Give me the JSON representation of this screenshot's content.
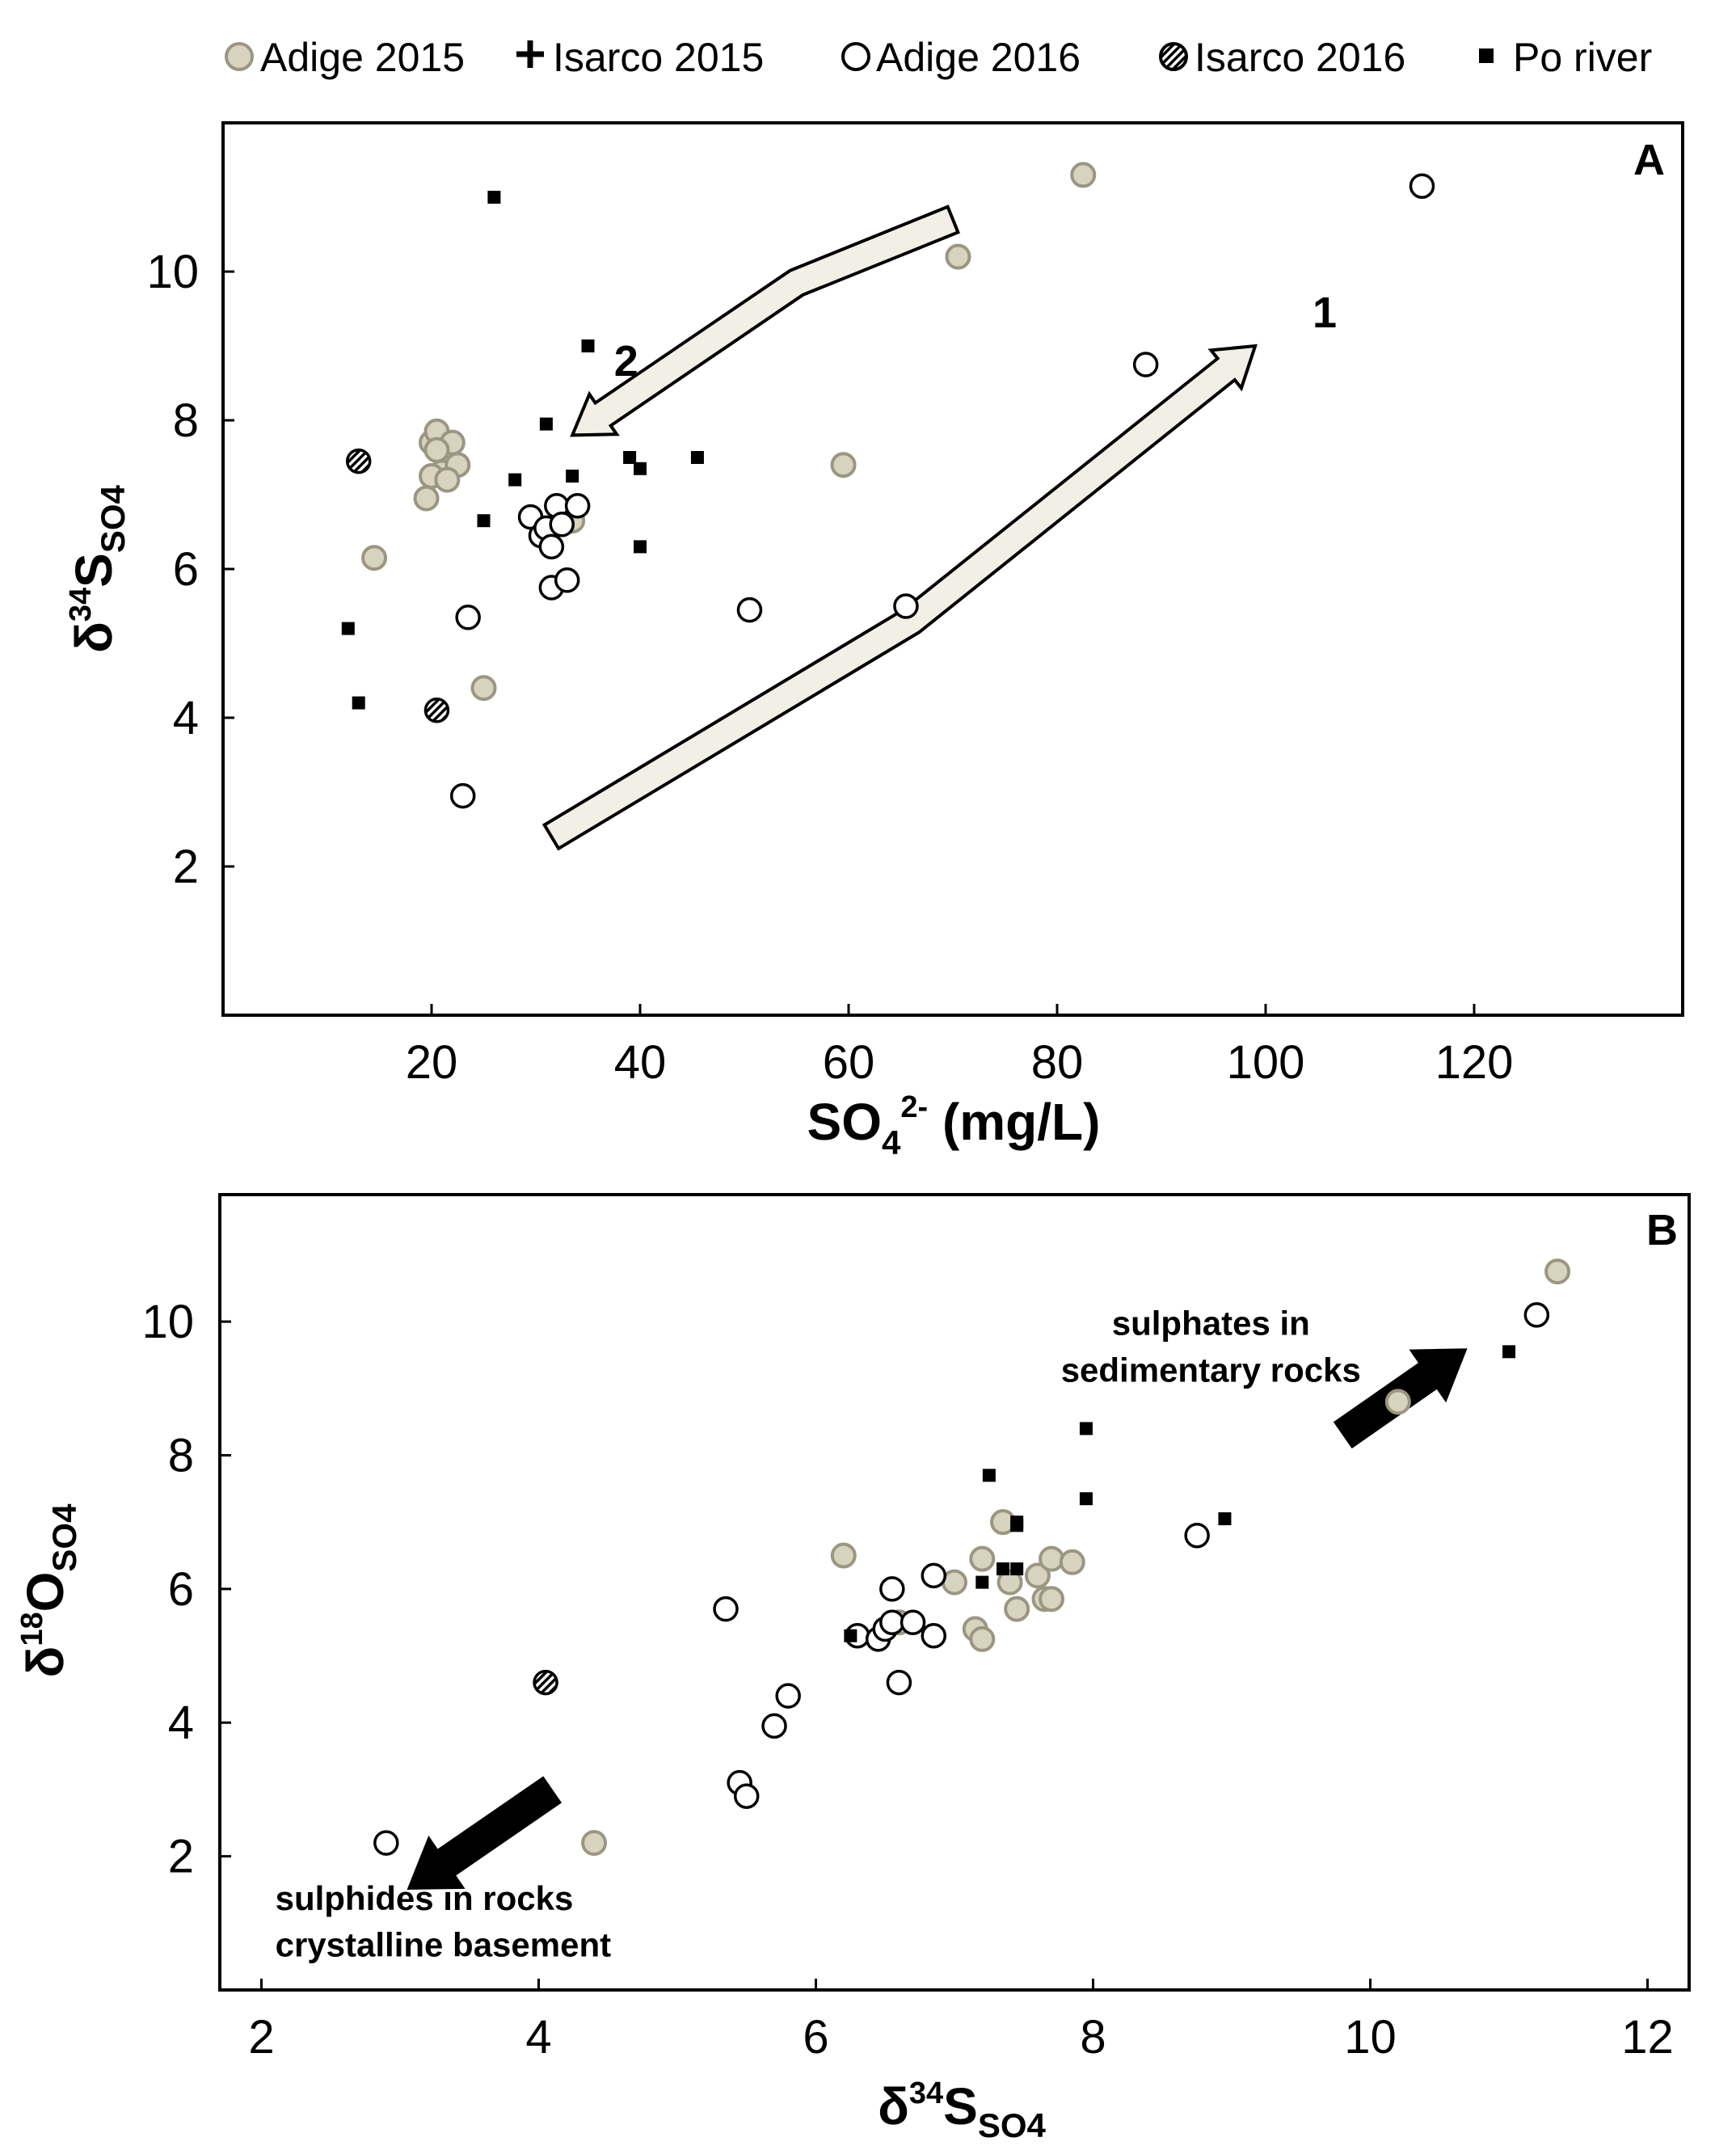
{
  "legend": [
    {
      "label": "Adige 2015",
      "marker": "filled-circle",
      "color": "#d8d3bf"
    },
    {
      "label": "Isarco 2015",
      "marker": "plus",
      "color": "#000000"
    },
    {
      "label": "Adige 2016",
      "marker": "open-circle",
      "color": "#ffffff"
    },
    {
      "label": "Isarco 2016",
      "marker": "hatched-circle",
      "color": "#000000"
    },
    {
      "label": "Po river",
      "marker": "square",
      "color": "#000000"
    }
  ],
  "colors": {
    "adige2015_fill": "#d8d3bf",
    "adige2015_edge": "#9b9682",
    "arrow_fill": "#f2efe6",
    "ink": "#000000"
  },
  "chart_data": [
    {
      "type": "scatter",
      "panel_label": "A",
      "xlabel": {
        "main": "SO",
        "sub": "4",
        "sup": "2-",
        "rest": " (mg/L)"
      },
      "ylabel": {
        "main": "δ",
        "sup": "34",
        "mid": "S",
        "sub": "SO4"
      },
      "xlim": [
        0,
        140
      ],
      "ylim": [
        0,
        12
      ],
      "xticks": [
        20,
        40,
        60,
        80,
        100,
        120
      ],
      "yticks": [
        2,
        4,
        6,
        8,
        10
      ],
      "series": [
        {
          "name": "Adige 2015",
          "points": [
            [
              14.5,
              6.15
            ],
            [
              19.5,
              6.95
            ],
            [
              20,
              7.7
            ],
            [
              20.5,
              7.85
            ],
            [
              21,
              7.3
            ],
            [
              22,
              7.7
            ],
            [
              22.5,
              7.4
            ],
            [
              20,
              7.25
            ],
            [
              20.5,
              7.6
            ],
            [
              21.5,
              7.2
            ],
            [
              33.5,
              6.65
            ],
            [
              25,
              4.4
            ],
            [
              59.5,
              7.4
            ],
            [
              70.5,
              10.2
            ],
            [
              82.5,
              11.3
            ]
          ]
        },
        {
          "name": "Isarco 2015",
          "points": []
        },
        {
          "name": "Adige 2016",
          "points": [
            [
              23.5,
              5.35
            ],
            [
              23,
              2.95
            ],
            [
              29.5,
              6.7
            ],
            [
              30.5,
              6.45
            ],
            [
              31,
              6.55
            ],
            [
              31.5,
              6.3
            ],
            [
              32,
              6.85
            ],
            [
              32.5,
              6.6
            ],
            [
              34,
              6.85
            ],
            [
              31.5,
              5.75
            ],
            [
              33,
              5.85
            ],
            [
              50.5,
              5.45
            ],
            [
              65.5,
              5.5
            ],
            [
              88.5,
              8.75
            ],
            [
              115,
              11.15
            ]
          ]
        },
        {
          "name": "Isarco 2016",
          "points": [
            [
              13,
              7.45
            ],
            [
              20.5,
              4.1
            ]
          ]
        },
        {
          "name": "Po river",
          "points": [
            [
              12,
              5.2
            ],
            [
              13,
              4.2
            ],
            [
              25,
              6.65
            ],
            [
              26,
              11
            ],
            [
              28,
              7.2
            ],
            [
              31,
              7.95
            ],
            [
              33.5,
              7.25
            ],
            [
              35,
              9
            ],
            [
              39,
              7.5
            ],
            [
              40,
              7.35
            ],
            [
              40,
              6.3
            ],
            [
              45.5,
              7.5
            ]
          ]
        }
      ],
      "annotations": [
        {
          "text": "1",
          "x": 104.5,
          "y": 9.25
        },
        {
          "text": "2",
          "x": 37.5,
          "y": 8.6
        }
      ],
      "arrows": [
        {
          "label": "1",
          "path": [
            [
              31.5,
              2.4
            ],
            [
              66,
              5.3
            ],
            [
              99,
              9.0
            ]
          ]
        },
        {
          "label": "2",
          "path": [
            [
              70,
              10.7
            ],
            [
              55,
              9.85
            ],
            [
              33.5,
              7.8
            ]
          ]
        }
      ]
    },
    {
      "type": "scatter",
      "panel_label": "B",
      "xlabel": {
        "main": "δ",
        "sup": "34",
        "mid": "S",
        "sub": "SO4"
      },
      "ylabel": {
        "main": "δ",
        "sup": "18",
        "mid": "O",
        "sub": "SO4"
      },
      "xlim": [
        1.7,
        12.3
      ],
      "ylim": [
        0,
        11.9
      ],
      "xticks": [
        2,
        4,
        6,
        8,
        10,
        12
      ],
      "yticks": [
        2,
        4,
        6,
        8,
        10
      ],
      "series": [
        {
          "name": "Adige 2015",
          "points": [
            [
              4.4,
              2.2
            ],
            [
              6.2,
              6.5
            ],
            [
              6.6,
              5.5
            ],
            [
              7.0,
              6.1
            ],
            [
              7.15,
              5.4
            ],
            [
              7.2,
              6.45
            ],
            [
              7.2,
              5.25
            ],
            [
              7.35,
              7.0
            ],
            [
              7.4,
              6.1
            ],
            [
              7.45,
              5.7
            ],
            [
              7.6,
              6.2
            ],
            [
              7.65,
              5.85
            ],
            [
              7.7,
              6.45
            ],
            [
              7.7,
              5.85
            ],
            [
              7.85,
              6.4
            ],
            [
              10.2,
              8.8
            ],
            [
              11.35,
              10.75
            ]
          ]
        },
        {
          "name": "Isarco 2015",
          "points": []
        },
        {
          "name": "Adige 2016",
          "points": [
            [
              2.9,
              2.2
            ],
            [
              5.35,
              5.7
            ],
            [
              5.45,
              3.1
            ],
            [
              5.5,
              2.9
            ],
            [
              5.7,
              3.95
            ],
            [
              5.8,
              4.4
            ],
            [
              6.3,
              5.3
            ],
            [
              6.45,
              5.25
            ],
            [
              6.5,
              5.4
            ],
            [
              6.55,
              6.0
            ],
            [
              6.55,
              5.5
            ],
            [
              6.6,
              4.6
            ],
            [
              6.7,
              5.5
            ],
            [
              6.85,
              6.2
            ],
            [
              6.85,
              5.3
            ],
            [
              8.75,
              6.8
            ],
            [
              11.2,
              10.1
            ]
          ]
        },
        {
          "name": "Isarco 2016",
          "points": [
            [
              4.05,
              4.6
            ]
          ]
        },
        {
          "name": "Po river",
          "points": [
            [
              6.25,
              5.3
            ],
            [
              7.2,
              6.1
            ],
            [
              7.25,
              7.7
            ],
            [
              7.35,
              6.3
            ],
            [
              7.45,
              7.0
            ],
            [
              7.45,
              6.95
            ],
            [
              7.45,
              6.3
            ],
            [
              7.95,
              7.35
            ],
            [
              7.95,
              8.4
            ],
            [
              8.95,
              7.05
            ],
            [
              11.0,
              9.55
            ]
          ]
        }
      ],
      "annotations": [
        {
          "text": "sulphates in",
          "x": 8.85,
          "y": 9.8
        },
        {
          "text": "sedimentary rocks",
          "x": 8.85,
          "y": 9.1
        },
        {
          "text": "sulphides in rocks",
          "x": 2.1,
          "y": 1.2
        },
        {
          "text": "crystalline basement",
          "x": 2.1,
          "y": 0.5
        }
      ],
      "arrows": [
        {
          "direction": "up-right",
          "from": [
            9.8,
            8.3
          ],
          "to": [
            10.7,
            9.6
          ]
        },
        {
          "direction": "down-left",
          "from": [
            4.1,
            3.0
          ],
          "to": [
            3.05,
            1.5
          ]
        }
      ]
    }
  ]
}
